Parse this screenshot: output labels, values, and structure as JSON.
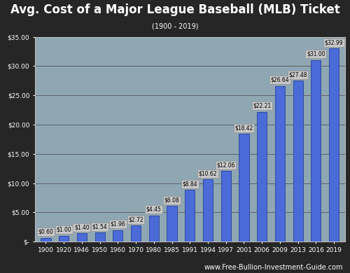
{
  "chart_data": {
    "type": "bar",
    "title": "Avg. Cost of a Major League Baseball (MLB) Ticket",
    "subtitle": "(1900 - 2019)",
    "source": "www.Free-Bullion-Investment-Guide.com",
    "categories": [
      "1900",
      "1920",
      "1946",
      "1950",
      "1960",
      "1970",
      "1980",
      "1985",
      "1991",
      "1994",
      "1997",
      "2001",
      "2006",
      "2009",
      "2013",
      "2016",
      "2019"
    ],
    "values": [
      0.6,
      1.0,
      1.4,
      1.54,
      1.96,
      2.72,
      4.45,
      6.08,
      8.84,
      10.62,
      12.06,
      18.42,
      22.21,
      26.64,
      27.48,
      31.0,
      32.99
    ],
    "value_labels": [
      "$0.60",
      "$1.00",
      "$1.40",
      "$1.54",
      "$1.96",
      "$2.72",
      "$4.45",
      "$6.08",
      "$8.84",
      "$10.62",
      "$12.06",
      "$18.42",
      "$22.21",
      "$26.64",
      "$27.48",
      "$31.00",
      "$32.99"
    ],
    "data_labels": true,
    "color": "#4a6bd8",
    "ylim": [
      0,
      35
    ],
    "yticks": [
      {
        "value": 0,
        "label": "$-"
      },
      {
        "value": 5,
        "label": "$5.00"
      },
      {
        "value": 10,
        "label": "$10.00"
      },
      {
        "value": 15,
        "label": "$15.00"
      },
      {
        "value": 20,
        "label": "$20.00"
      },
      {
        "value": 25,
        "label": "$25.00"
      },
      {
        "value": 30,
        "label": "$30.00"
      },
      {
        "value": 35,
        "label": "$35.00"
      }
    ],
    "grid": true
  }
}
